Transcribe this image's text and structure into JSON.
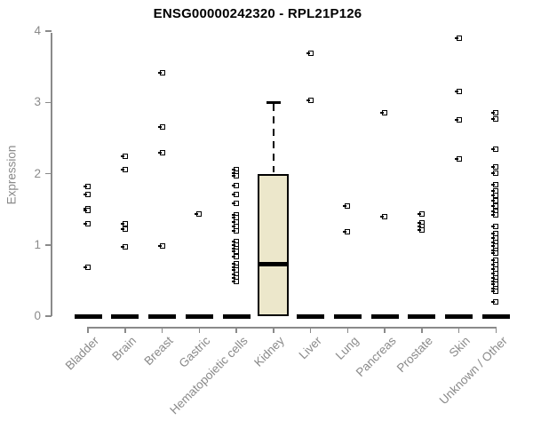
{
  "title": "ENSG00000242320 - RPL21P126",
  "colors": {
    "axis": "#8a8a8a",
    "label": "#8a8a8a",
    "title": "#000000",
    "box_fill": "#ece7cb",
    "box_border": "#000000",
    "marker": "#000000",
    "background": "#ffffff"
  },
  "chart_data": {
    "type": "boxplot",
    "title": "ENSG00000242320 - RPL21P126",
    "xlabel": "",
    "ylabel": "Expression",
    "ylim": [
      0,
      4
    ],
    "y_ticks": [
      0,
      1,
      2,
      3,
      4
    ],
    "grid": false,
    "legend": null,
    "marker_style": "open-square",
    "categories": [
      "Bladder",
      "Brain",
      "Breast",
      "Gastric",
      "Hematopoietic cells",
      "Kidney",
      "Liver",
      "Lung",
      "Pancreas",
      "Prostate",
      "Skin",
      "Unknown / Other"
    ],
    "groups": [
      {
        "category": "Bladder",
        "box": {
          "q1": 0,
          "median": 0,
          "q3": 0
        },
        "points": [
          1.82,
          1.71,
          1.51,
          1.48,
          1.3,
          0.68
        ]
      },
      {
        "category": "Brain",
        "box": {
          "q1": 0,
          "median": 0,
          "q3": 0
        },
        "points": [
          2.24,
          2.05,
          1.29,
          1.22,
          0.97
        ]
      },
      {
        "category": "Breast",
        "box": {
          "q1": 0,
          "median": 0,
          "q3": 0
        },
        "points": [
          3.41,
          2.65,
          2.29,
          0.98
        ]
      },
      {
        "category": "Gastric",
        "box": {
          "q1": 0,
          "median": 0,
          "q3": 0
        },
        "points": [
          1.43
        ]
      },
      {
        "category": "Hematopoietic cells",
        "box": {
          "q1": 0,
          "median": 0,
          "q3": 0
        },
        "points": [
          2.06,
          2.01,
          1.97,
          1.83,
          1.71,
          1.58,
          1.42,
          1.38,
          1.32,
          1.26,
          1.2,
          1.05,
          1.0,
          0.95,
          0.91,
          0.83,
          0.74,
          0.68,
          0.65,
          0.58,
          0.53,
          0.49
        ]
      },
      {
        "category": "Kidney",
        "box": {
          "q1": 0,
          "median": 0.73,
          "q3": 2.0,
          "whisker_high": 3.0
        },
        "points": []
      },
      {
        "category": "Liver",
        "box": {
          "q1": 0,
          "median": 0,
          "q3": 0
        },
        "points": [
          3.69,
          3.03
        ]
      },
      {
        "category": "Lung",
        "box": {
          "q1": 0,
          "median": 0,
          "q3": 0
        },
        "points": [
          1.55,
          1.19
        ]
      },
      {
        "category": "Pancreas",
        "box": {
          "q1": 0,
          "median": 0,
          "q3": 0
        },
        "points": [
          2.85,
          1.39
        ]
      },
      {
        "category": "Prostate",
        "box": {
          "q1": 0,
          "median": 0,
          "q3": 0
        },
        "points": [
          1.43,
          1.31,
          1.26,
          1.21
        ]
      },
      {
        "category": "Skin",
        "box": {
          "q1": 0,
          "median": 0,
          "q3": 0
        },
        "points": [
          3.9,
          3.15,
          2.76,
          2.21
        ]
      },
      {
        "category": "Unknown / Other",
        "box": {
          "q1": 0,
          "median": 0,
          "q3": 0
        },
        "points": [
          2.85,
          2.77,
          2.34,
          2.09,
          2.01,
          1.85,
          1.76,
          1.69,
          1.62,
          1.55,
          1.47,
          1.42,
          1.26,
          1.16,
          1.1,
          1.04,
          0.98,
          0.92,
          0.88,
          0.78,
          0.72,
          0.66,
          0.6,
          0.54,
          0.48,
          0.45,
          0.39,
          0.35,
          0.2
        ]
      }
    ]
  }
}
